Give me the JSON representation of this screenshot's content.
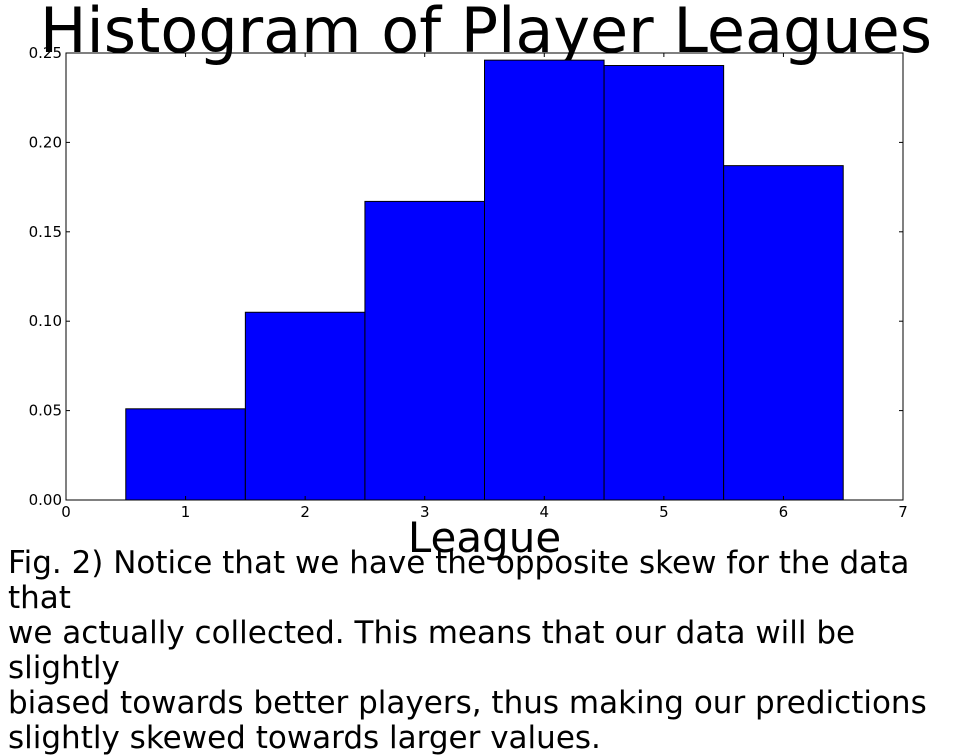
{
  "chart_data": {
    "type": "bar",
    "title": "Histogram of Player Leagues",
    "xlabel": "League",
    "ylabel": "",
    "xlim": [
      0,
      7
    ],
    "ylim": [
      0,
      0.25
    ],
    "x_ticks": [
      "0",
      "1",
      "2",
      "3",
      "4",
      "5",
      "6",
      "7"
    ],
    "y_ticks": [
      "0.00",
      "0.05",
      "0.10",
      "0.15",
      "0.20",
      "0.25"
    ],
    "bins": [
      {
        "left": 0.5,
        "right": 1.5,
        "value": 0.051
      },
      {
        "left": 1.5,
        "right": 2.5,
        "value": 0.105
      },
      {
        "left": 2.5,
        "right": 3.5,
        "value": 0.167
      },
      {
        "left": 3.5,
        "right": 4.5,
        "value": 0.246
      },
      {
        "left": 4.5,
        "right": 5.5,
        "value": 0.243
      },
      {
        "left": 5.5,
        "right": 6.5,
        "value": 0.187
      }
    ],
    "bar_color": "#0000ff",
    "grid": false,
    "legend": false
  },
  "caption": "Fig. 2) Notice that we have the opposite skew for the data that\nwe actually collected.  This means that our data will be slightly\nbiased towards better players, thus making our predictions\nslightly skewed towards larger values."
}
